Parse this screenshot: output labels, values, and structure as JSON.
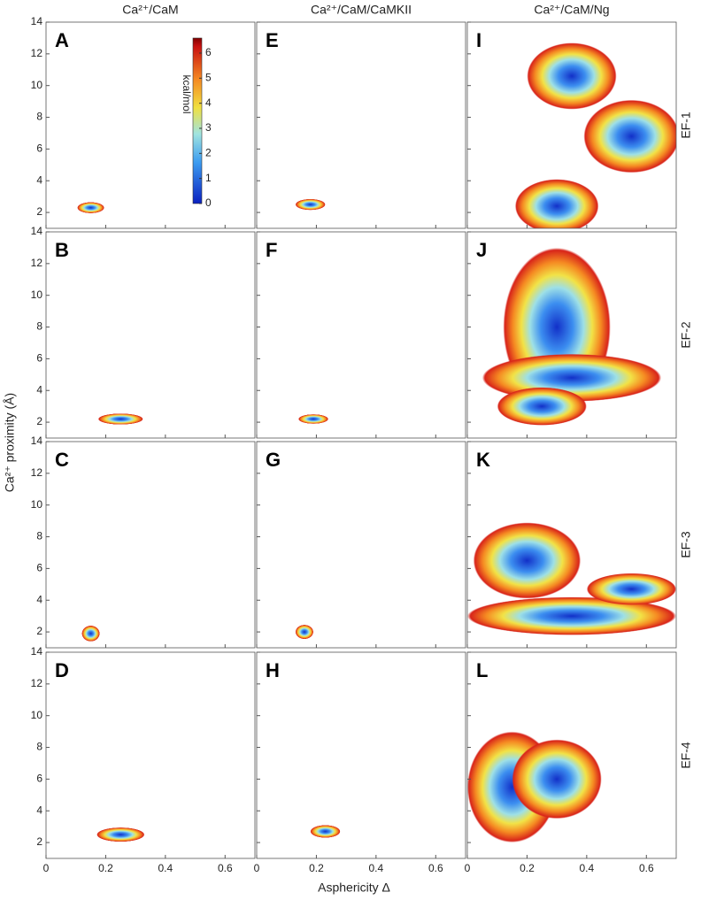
{
  "chart_data": {
    "type": "heatmap",
    "column_titles": [
      "Ca²⁺/CaM",
      "Ca²⁺/CaM/CaMKII",
      "Ca²⁺/CaM/Ng"
    ],
    "row_labels": [
      "EF-1",
      "EF-2",
      "EF-3",
      "EF-4"
    ],
    "xlabel": "Asphericity Δ",
    "ylabel": "Ca²⁺ proximity (Å)",
    "xlim": [
      0,
      0.7
    ],
    "xticks": [
      0,
      0.2,
      0.4,
      0.6
    ],
    "ylim": [
      1,
      14
    ],
    "yticks": [
      2,
      4,
      6,
      8,
      10,
      12,
      14
    ],
    "colorbar": {
      "label": "kcal/mol",
      "lim": [
        0,
        6.6
      ],
      "ticks": [
        0,
        1,
        2,
        3,
        4,
        5,
        6
      ]
    },
    "panels": [
      {
        "letter": "A",
        "basins": [
          {
            "x": 0.15,
            "y": 2.3,
            "sx": 0.045,
            "sy": 0.35
          }
        ]
      },
      {
        "letter": "E",
        "basins": [
          {
            "x": 0.18,
            "y": 2.5,
            "sx": 0.05,
            "sy": 0.35
          }
        ]
      },
      {
        "letter": "I",
        "basins": [
          {
            "x": 0.35,
            "y": 10.6,
            "sx": 0.15,
            "sy": 2.1
          },
          {
            "x": 0.55,
            "y": 6.8,
            "sx": 0.16,
            "sy": 2.3
          },
          {
            "x": 0.3,
            "y": 2.4,
            "sx": 0.14,
            "sy": 1.7
          }
        ]
      },
      {
        "letter": "B",
        "basins": [
          {
            "x": 0.25,
            "y": 2.2,
            "sx": 0.075,
            "sy": 0.35
          }
        ]
      },
      {
        "letter": "F",
        "basins": [
          {
            "x": 0.19,
            "y": 2.2,
            "sx": 0.05,
            "sy": 0.3
          }
        ]
      },
      {
        "letter": "J",
        "basins": [
          {
            "x": 0.3,
            "y": 8,
            "sx": 0.18,
            "sy": 5
          },
          {
            "x": 0.35,
            "y": 4.8,
            "sx": 0.3,
            "sy": 1.5
          },
          {
            "x": 0.25,
            "y": 3,
            "sx": 0.15,
            "sy": 1.2
          }
        ]
      },
      {
        "letter": "C",
        "basins": [
          {
            "x": 0.15,
            "y": 1.9,
            "sx": 0.03,
            "sy": 0.5
          }
        ]
      },
      {
        "letter": "G",
        "basins": [
          {
            "x": 0.16,
            "y": 2.0,
            "sx": 0.03,
            "sy": 0.45
          }
        ]
      },
      {
        "letter": "K",
        "basins": [
          {
            "x": 0.2,
            "y": 6.5,
            "sx": 0.18,
            "sy": 2.4
          },
          {
            "x": 0.35,
            "y": 3,
            "sx": 0.35,
            "sy": 1.2
          },
          {
            "x": 0.55,
            "y": 4.7,
            "sx": 0.15,
            "sy": 1
          }
        ]
      },
      {
        "letter": "D",
        "basins": [
          {
            "x": 0.25,
            "y": 2.5,
            "sx": 0.08,
            "sy": 0.45
          }
        ]
      },
      {
        "letter": "H",
        "basins": [
          {
            "x": 0.23,
            "y": 2.7,
            "sx": 0.05,
            "sy": 0.4
          }
        ]
      },
      {
        "letter": "L",
        "basins": [
          {
            "x": 0.15,
            "y": 5.5,
            "sx": 0.15,
            "sy": 3.5
          },
          {
            "x": 0.3,
            "y": 6,
            "sx": 0.15,
            "sy": 2.5
          }
        ]
      }
    ]
  }
}
